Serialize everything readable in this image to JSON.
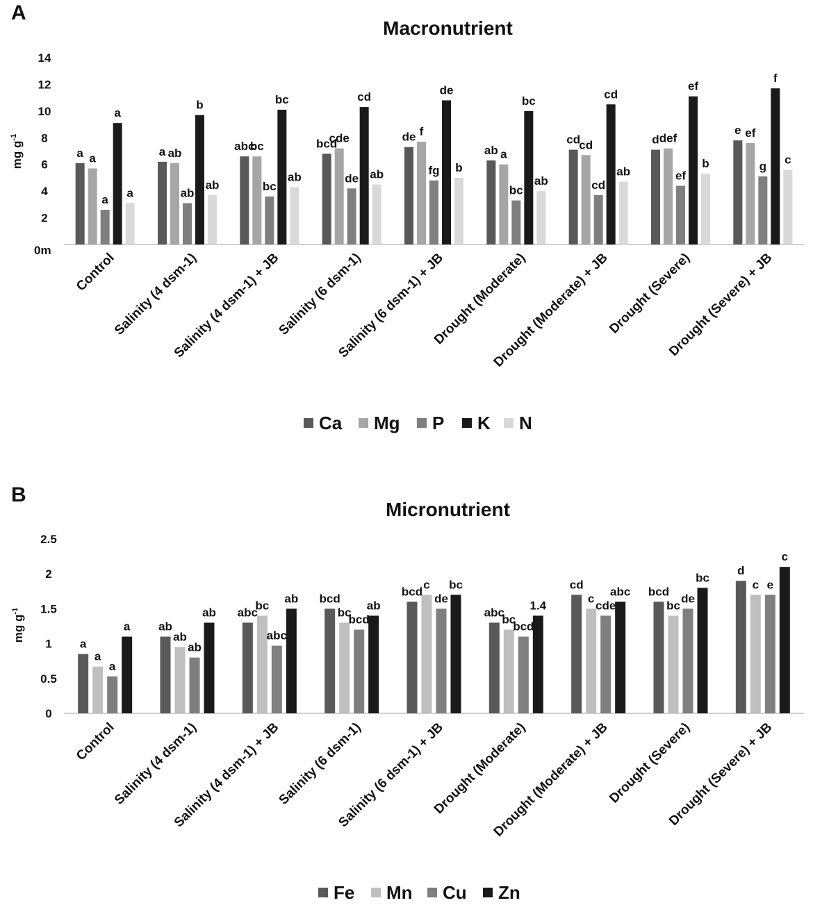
{
  "chart_data": [
    {
      "panel": "A",
      "type": "bar",
      "title": "Macronutrient",
      "xlabel": "",
      "ylabel": "mg g-1",
      "ylabel_main": "mg g",
      "ylabel_sup": "-1",
      "ylim": [
        0,
        14
      ],
      "yticks": [
        14,
        12,
        10,
        8,
        6,
        4,
        2
      ],
      "zero_label": "0m",
      "categories": [
        "Control",
        "Salinity (4 dsm-1)",
        "Salinity (4 dsm-1) + JB",
        "Salinity (6 dsm-1)",
        "Salinity (6 dsm-1) + JB",
        "Drought (Moderate)",
        "Drought (Moderate) + JB",
        "Drought (Severe)",
        "Drought (Severe) + JB"
      ],
      "legend_position": "bottom",
      "series": [
        {
          "name": "Ca",
          "color": "#595959",
          "values": [
            6.1,
            6.2,
            6.6,
            6.8,
            7.3,
            6.3,
            7.1,
            7.1,
            7.8
          ],
          "labels": [
            "a",
            "a",
            "abc",
            "bcd",
            "de",
            "ab",
            "cd",
            "d",
            "e"
          ]
        },
        {
          "name": "Mg",
          "color": "#a6a6a6",
          "values": [
            5.7,
            6.1,
            6.6,
            7.2,
            7.7,
            6.0,
            6.7,
            7.2,
            7.6
          ],
          "labels": [
            "a",
            "ab",
            "bc",
            "cde",
            "f",
            "a",
            "cd",
            "def",
            "ef"
          ]
        },
        {
          "name": "P",
          "color": "#7f7f7f",
          "values": [
            2.6,
            3.1,
            3.6,
            4.2,
            4.8,
            3.3,
            3.7,
            4.4,
            5.1
          ],
          "labels": [
            "a",
            "ab",
            "bc",
            "de",
            "fg",
            "bc",
            "cd",
            "ef",
            "g"
          ]
        },
        {
          "name": "K",
          "color": "#1a1a1a",
          "values": [
            9.1,
            9.7,
            10.1,
            10.3,
            10.8,
            10.0,
            10.5,
            11.1,
            11.7
          ],
          "labels": [
            "a",
            "b",
            "bc",
            "cd",
            "de",
            "bc",
            "cd",
            "ef",
            "f"
          ]
        },
        {
          "name": "N",
          "color": "#d9d9d9",
          "values": [
            3.1,
            3.7,
            4.3,
            4.5,
            5.0,
            4.0,
            4.7,
            5.3,
            5.6
          ],
          "labels": [
            "a",
            "ab",
            "ab",
            "ab",
            "b",
            "ab",
            "ab",
            "b",
            "c"
          ]
        }
      ]
    },
    {
      "panel": "B",
      "type": "bar",
      "title": "Micronutrient",
      "xlabel": "",
      "ylabel": "mg g-1",
      "ylabel_main": "mg g",
      "ylabel_sup": "-1",
      "ylim": [
        0,
        2.5
      ],
      "yticks": [
        "2.5",
        "2",
        "1.5",
        "1",
        "0.5",
        "0"
      ],
      "categories": [
        "Control",
        "Salinity (4 dsm-1)",
        "Salinity (4 dsm-1) + JB",
        "Salinity (6 dsm-1)",
        "Salinity (6 dsm-1) + JB",
        "Drought (Moderate)",
        "Drought (Moderate) + JB",
        "Drought (Severe)",
        "Drought (Severe) + JB"
      ],
      "legend_position": "bottom",
      "series": [
        {
          "name": "Fe",
          "color": "#595959",
          "values": [
            0.85,
            1.1,
            1.3,
            1.5,
            1.6,
            1.3,
            1.7,
            1.6,
            1.9
          ],
          "labels": [
            "a",
            "ab",
            "abc",
            "bcd",
            "bcd",
            "abc",
            "cd",
            "bcd",
            "d"
          ]
        },
        {
          "name": "Mn",
          "color": "#bfbfbf",
          "values": [
            0.67,
            0.95,
            1.4,
            1.3,
            1.7,
            1.2,
            1.5,
            1.4,
            1.7
          ],
          "labels": [
            "a",
            "ab",
            "bc",
            "bc",
            "c",
            "bc",
            "c",
            "bc",
            "c"
          ]
        },
        {
          "name": "Cu",
          "color": "#7f7f7f",
          "values": [
            0.53,
            0.8,
            0.97,
            1.2,
            1.5,
            1.1,
            1.4,
            1.5,
            1.7
          ],
          "labels": [
            "a",
            "ab",
            "abc",
            "bcd",
            "de",
            "bcd",
            "cde",
            "de",
            "e"
          ]
        },
        {
          "name": "Zn",
          "color": "#1a1a1a",
          "values": [
            1.1,
            1.3,
            1.5,
            1.4,
            1.7,
            1.4,
            1.6,
            1.8,
            2.1
          ],
          "labels": [
            "a",
            "ab",
            "ab",
            "ab",
            "bc",
            "1.4",
            "abc",
            "bc",
            "c"
          ]
        }
      ]
    }
  ]
}
